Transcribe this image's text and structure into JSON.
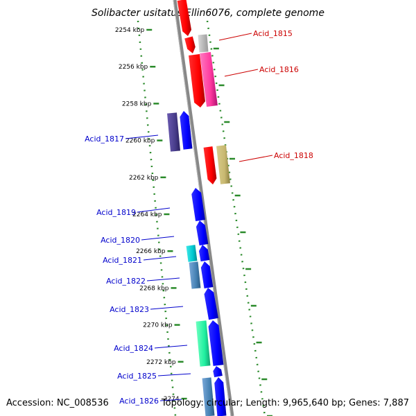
{
  "title": "Solibacter usitatus Ellin6076, complete genome",
  "footer": {
    "accession": "Accession: NC_008536",
    "stats": "Topology: circular; Length: 9,965,640 bp; Genes: 7,887"
  },
  "ticks": [
    {
      "label": "2254 kbp",
      "kbp": 2254
    },
    {
      "label": "2256 kbp",
      "kbp": 2256
    },
    {
      "label": "2258 kbp",
      "kbp": 2258
    },
    {
      "label": "2260 kbp",
      "kbp": 2260
    },
    {
      "label": "2262 kbp",
      "kbp": 2262
    },
    {
      "label": "2264 kbp",
      "kbp": 2264
    },
    {
      "label": "2266 kbp",
      "kbp": 2266
    },
    {
      "label": "2268 kbp",
      "kbp": 2268
    },
    {
      "label": "2270 kbp",
      "kbp": 2270
    },
    {
      "label": "2272 kbp",
      "kbp": 2272
    },
    {
      "label": "2274",
      "kbp": 2274
    }
  ],
  "gene_labels": [
    {
      "name": "Acid_1815",
      "strand": "forward"
    },
    {
      "name": "Acid_1816",
      "strand": "forward"
    },
    {
      "name": "Acid_1817",
      "strand": "reverse"
    },
    {
      "name": "Acid_1818",
      "strand": "forward"
    },
    {
      "name": "Acid_1819",
      "strand": "reverse"
    },
    {
      "name": "Acid_1820",
      "strand": "reverse"
    },
    {
      "name": "Acid_1821",
      "strand": "reverse"
    },
    {
      "name": "Acid_1822",
      "strand": "reverse"
    },
    {
      "name": "Acid_1823",
      "strand": "reverse"
    },
    {
      "name": "Acid_1824",
      "strand": "reverse"
    },
    {
      "name": "Acid_1825",
      "strand": "reverse"
    },
    {
      "name": "Acid_1826",
      "strand": "reverse"
    }
  ],
  "colors": {
    "forward_label": "#cc0000",
    "reverse_label": "#0000cc",
    "backbone": "#888888",
    "ring": "#2a8a2a"
  }
}
